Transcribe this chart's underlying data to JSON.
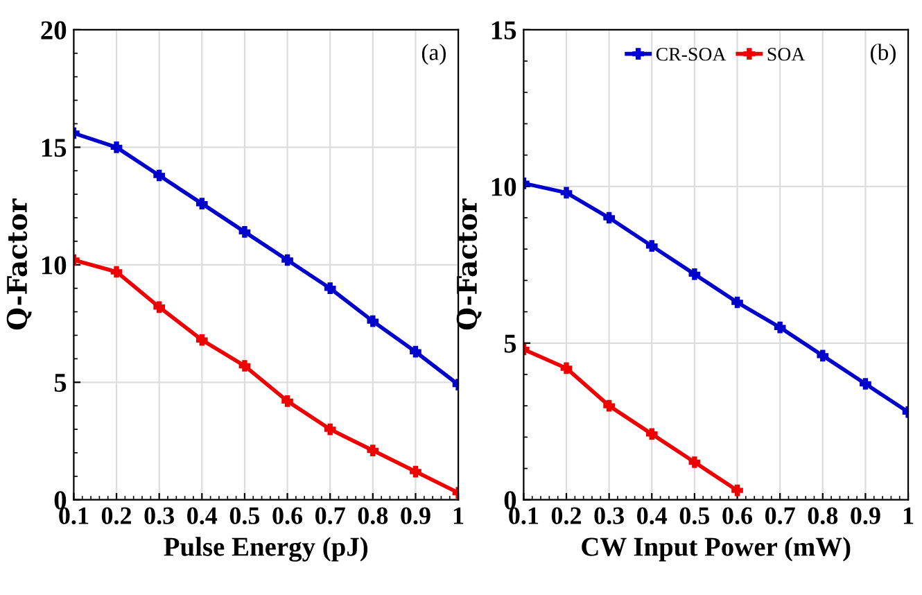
{
  "chart_data": [
    {
      "type": "line",
      "xlabel": "Pulse Energy (pJ)",
      "ylabel": "Q-Factor",
      "annotations": [
        "(a)"
      ],
      "x": [
        0.1,
        0.2,
        0.3,
        0.4,
        0.5,
        0.6,
        0.7,
        0.8,
        0.9,
        1
      ],
      "xlim": [
        0.1,
        1
      ],
      "xticks": [
        0.1,
        0.2,
        0.3,
        0.4,
        0.5,
        0.6,
        0.7,
        0.8,
        0.9,
        1
      ],
      "ylim": [
        0,
        20
      ],
      "yticks": [
        0,
        5,
        10,
        15,
        20
      ],
      "grid": true,
      "marker": "cross",
      "line_style": "solid",
      "series": [
        {
          "color": "#0000cc",
          "values": [
            15.6,
            15.0,
            13.8,
            12.6,
            11.4,
            10.2,
            9.0,
            7.6,
            6.3,
            4.9
          ]
        },
        {
          "color": "#ee0000",
          "values": [
            10.2,
            9.7,
            8.2,
            6.8,
            5.7,
            4.2,
            3.0,
            2.1,
            1.2,
            0.3
          ]
        }
      ]
    },
    {
      "type": "line",
      "xlabel": "CW Input Power (mW)",
      "ylabel": "Q-Factor",
      "annotations": [
        "(b)"
      ],
      "x": [
        0.1,
        0.2,
        0.3,
        0.4,
        0.5,
        0.6,
        0.7,
        0.8,
        0.9,
        1
      ],
      "xlim": [
        0.1,
        1
      ],
      "xticks": [
        0.1,
        0.2,
        0.3,
        0.4,
        0.5,
        0.6,
        0.7,
        0.8,
        0.9,
        1
      ],
      "ylim": [
        0,
        15
      ],
      "yticks": [
        0,
        5,
        10,
        15
      ],
      "grid": true,
      "legend": "top",
      "marker": "cross",
      "line_style": "solid",
      "series": [
        {
          "name": "CR-SOA",
          "color": "#0000cc",
          "values": [
            10.1,
            9.8,
            9.0,
            8.1,
            7.2,
            6.3,
            5.5,
            4.6,
            3.7,
            2.8
          ]
        },
        {
          "name": "SOA",
          "color": "#ee0000",
          "values": [
            4.8,
            4.2,
            3.0,
            2.1,
            1.2,
            0.3,
            null,
            null,
            null,
            null
          ]
        }
      ]
    }
  ]
}
